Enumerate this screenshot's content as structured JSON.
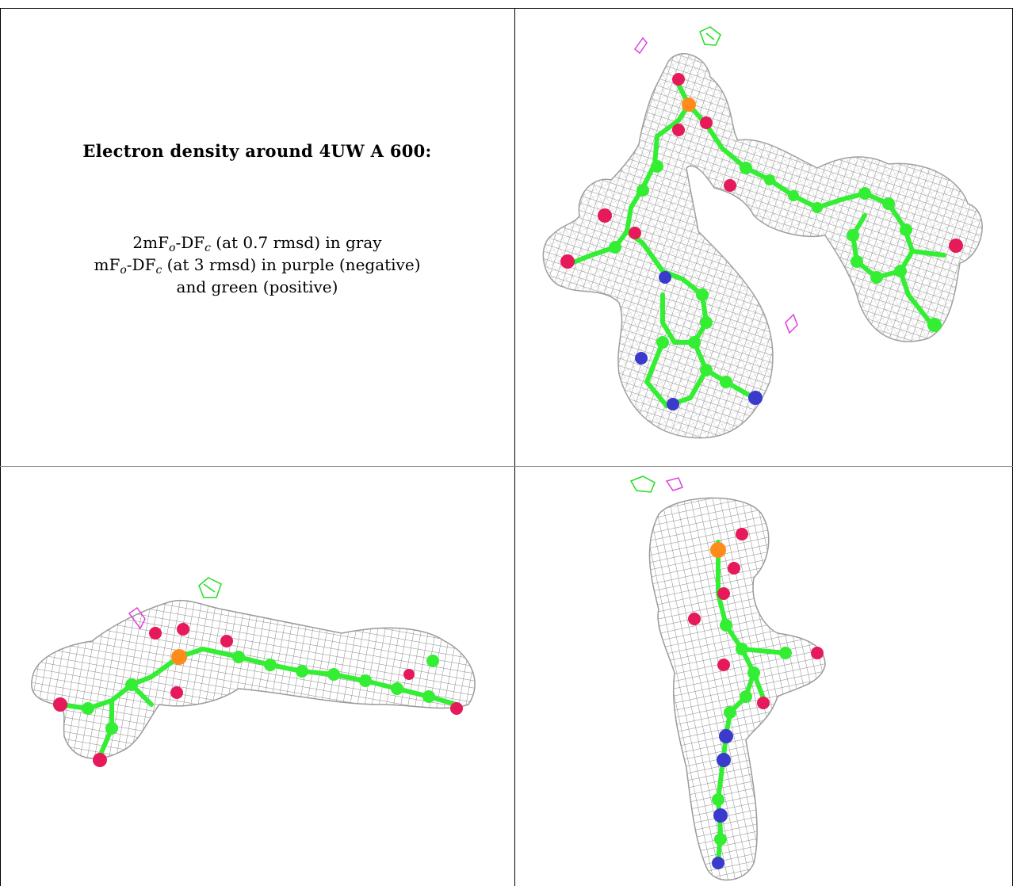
{
  "caption": {
    "title": "Electron density around 4UW A 600:",
    "line1": {
      "a": "2mF",
      "o": "o",
      "b": "-DF",
      "c": "c",
      "rest": " (at 0.7 rmsd) in gray"
    },
    "line2": {
      "a": "mF",
      "o": "o",
      "b": "-DF",
      "c": "c",
      "rest": " (at 3 rmsd) in purple (negative)"
    },
    "line3": "and green (positive)"
  },
  "colors": {
    "mesh": "#9a9a9a",
    "carbon": "#33ee33",
    "oxygen": "#e6195a",
    "nitrogen": "#3a3acc",
    "phosphorus": "#ff8c1a",
    "negative": "#e040e0",
    "positive": "#22dd22"
  },
  "panels": [
    {
      "name": "view-top-right"
    },
    {
      "name": "view-bottom-left"
    },
    {
      "name": "view-bottom-right"
    }
  ]
}
